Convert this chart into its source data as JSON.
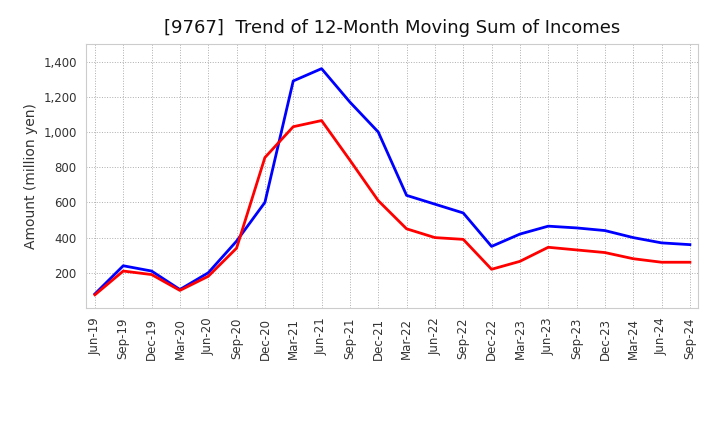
{
  "title": "[9767]  Trend of 12-Month Moving Sum of Incomes",
  "ylabel": "Amount (million yen)",
  "background_color": "#ffffff",
  "grid_color": "#999999",
  "ylim": [
    0,
    1500
  ],
  "yticks": [
    200,
    400,
    600,
    800,
    1000,
    1200,
    1400
  ],
  "labels": [
    "Jun-19",
    "Sep-19",
    "Dec-19",
    "Mar-20",
    "Jun-20",
    "Sep-20",
    "Dec-20",
    "Mar-21",
    "Jun-21",
    "Sep-21",
    "Dec-21",
    "Mar-22",
    "Jun-22",
    "Sep-22",
    "Dec-22",
    "Mar-23",
    "Jun-23",
    "Sep-23",
    "Dec-23",
    "Mar-24",
    "Jun-24",
    "Sep-24"
  ],
  "ordinary_income": [
    80,
    240,
    210,
    105,
    200,
    380,
    600,
    1290,
    1360,
    1170,
    1000,
    640,
    590,
    540,
    350,
    420,
    465,
    455,
    440,
    400,
    370,
    360
  ],
  "net_income": [
    75,
    210,
    190,
    100,
    180,
    340,
    855,
    1030,
    1065,
    840,
    610,
    450,
    400,
    390,
    220,
    265,
    345,
    330,
    315,
    280,
    260,
    260
  ],
  "ordinary_color": "#0000ff",
  "net_color": "#ff0000",
  "title_fontsize": 13,
  "axis_fontsize": 10,
  "tick_fontsize": 8.5
}
